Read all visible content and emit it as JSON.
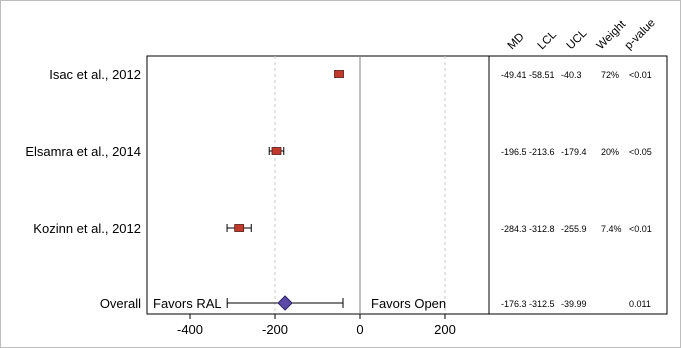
{
  "chart_data": {
    "type": "forest",
    "xlim": [
      -500,
      300
    ],
    "xticks": [
      -400,
      -200,
      0,
      200
    ],
    "reference_line": 0,
    "dashed_lines": [
      -200,
      200
    ],
    "columns": [
      "MD",
      "LCL",
      "UCL",
      "Weight",
      "p-value"
    ],
    "studies": [
      {
        "label": "Isac et al., 2012",
        "md": -49.41,
        "lcl": -58.51,
        "ucl": -40.3,
        "md_text": "-49.41",
        "lcl_text": "-58.51",
        "ucl_text": "-40.3",
        "weight": "72%",
        "p": "<0.01"
      },
      {
        "label": "Elsamra et al., 2014",
        "md": -196.5,
        "lcl": -213.6,
        "ucl": -179.4,
        "md_text": "-196.5",
        "lcl_text": "-213.6",
        "ucl_text": "-179.4",
        "weight": "20%",
        "p": "<0.05"
      },
      {
        "label": "Kozinn et al., 2012",
        "md": -284.3,
        "lcl": -312.8,
        "ucl": -255.9,
        "md_text": "-284.3",
        "lcl_text": "-312.8",
        "ucl_text": "-255.9",
        "weight": "7.4%",
        "p": "<0.01"
      }
    ],
    "overall": {
      "label": "Overall",
      "md": -176.3,
      "lcl": -312.5,
      "ucl": -39.99,
      "md_text": "-176.3",
      "lcl_text": "-312.5",
      "ucl_text": "-39.99",
      "weight": "",
      "p": "0.011"
    },
    "favors_left": "Favors RAL",
    "favors_right": "Favors Open",
    "colors": {
      "study_marker": "#c0392b",
      "overall_marker": "#5b4aa6",
      "axis": "#000000",
      "ref_line": "#7f7f7f",
      "dashed": "#c8c8c8"
    }
  }
}
